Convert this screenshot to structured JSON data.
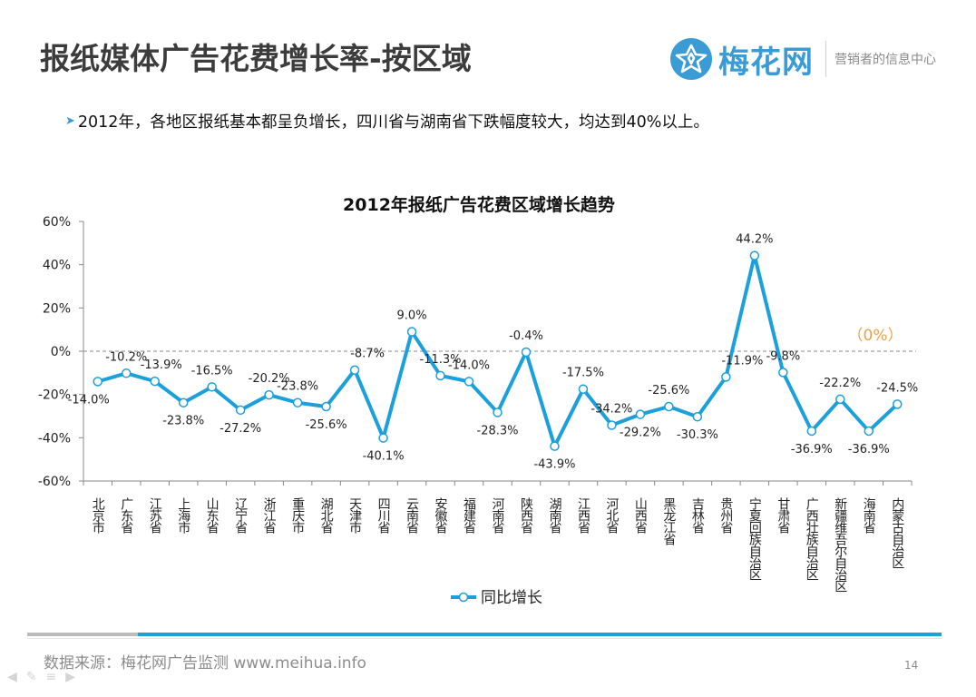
{
  "title": "报纸媒体广告花费增长率-按区域",
  "logo": {
    "name": "梅花网",
    "tagline": "营销者的信息中心"
  },
  "bullet": "2012年，各地区报纸基本都呈负增长，四川省与湖南省下跌幅度较大，均达到40%以上。",
  "footer": {
    "source": "数据来源：梅花网广告监测  www.meihua.info",
    "page": "14"
  },
  "chart_data": {
    "type": "line",
    "title": "2012年报纸广告花费区域增长趋势",
    "categories": [
      "北京市",
      "广东省",
      "江苏省",
      "上海市",
      "山东省",
      "辽宁省",
      "浙江省",
      "重庆市",
      "湖北省",
      "天津市",
      "四川省",
      "云南省",
      "安徽省",
      "福建省",
      "河南省",
      "陕西省",
      "湖南省",
      "江西省",
      "河北省",
      "山西省",
      "黑龙江省",
      "吉林省",
      "贵州省",
      "宁夏回族自治区",
      "甘肃省",
      "广西壮族自治区",
      "新疆维吾尔自治区",
      "海南省",
      "内蒙古自治区"
    ],
    "series": [
      {
        "name": "同比增长",
        "color": "#1ba0dc",
        "values": [
          -14.0,
          -10.2,
          -13.9,
          -23.8,
          -16.5,
          -27.2,
          -20.2,
          -23.8,
          -25.6,
          -8.7,
          -40.1,
          9.0,
          -11.3,
          -14.0,
          -28.3,
          -0.4,
          -43.9,
          -17.5,
          -34.2,
          -29.2,
          -25.6,
          -30.3,
          -11.9,
          44.2,
          -9.8,
          -36.9,
          -22.2,
          -36.9,
          -24.5
        ],
        "labels": [
          "-14.0%",
          "-10.2%",
          "-13.9%",
          "-23.8%",
          "-16.5%",
          "-27.2%",
          "-20.2%",
          "-23.8%",
          "-25.6%",
          "-8.7%",
          "-40.1%",
          "9.0%",
          "-11.3%",
          "-14.0%",
          "-28.3%",
          "-0.4%",
          "-43.9%",
          "-17.5%",
          "-34.2%",
          "-29.2%",
          "-25.6%",
          "-30.3%",
          "-11.9%",
          "44.2%",
          "-9.8%",
          "-36.9%",
          "-22.2%",
          "-36.9%",
          "-24.5%"
        ]
      }
    ],
    "ylim": [
      -60,
      60
    ],
    "yticks": [
      60,
      40,
      20,
      0,
      -20,
      -40,
      -60
    ],
    "ytick_labels": [
      "60%",
      "40%",
      "20%",
      "0%",
      "-20%",
      "-40%",
      "-60%"
    ],
    "reference_line": {
      "value": 0,
      "label": "（0%）",
      "color": "#e8a14a",
      "style": "dashed"
    },
    "legend": "bottom"
  }
}
